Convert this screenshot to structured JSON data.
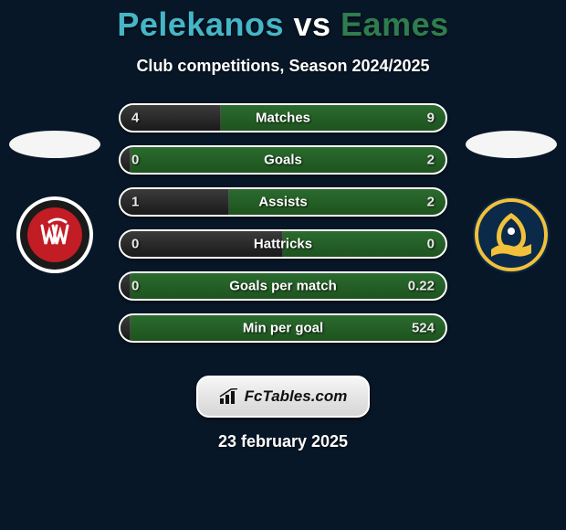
{
  "title": {
    "player1_name": "Pelekanos",
    "vs_text": "vs",
    "player2_name": "Eames",
    "player1_color": "#46b6c7",
    "vs_color": "#ffffff",
    "player2_color": "#2f7d4f"
  },
  "subtitle": "Club competitions, Season 2024/2025",
  "colors": {
    "background": "#081727",
    "bar_left_bg_top": "#3b3b3b",
    "bar_left_bg_bottom": "#1a1a1a",
    "bar_right_bg_top": "#2a6b2e",
    "bar_right_bg_bottom": "#1e531f",
    "bar_border": "#ffffff"
  },
  "club_left": {
    "name": "Western Sydney Wanderers",
    "outer_bg": "#ffffff",
    "ring_color": "#1a1a1a",
    "inner_bg": "#c21c24",
    "mono_stroke": "#ffffff"
  },
  "club_right": {
    "name": "Central Coast Mariners",
    "outer_bg": "#0b2a4a",
    "ring_color": "#f2c13a",
    "inner_bg": "#0b2a4a"
  },
  "bars": [
    {
      "label": "Matches",
      "left_value": "4",
      "right_value": "9",
      "left_pct": 30.77
    },
    {
      "label": "Goals",
      "left_value": "0",
      "right_value": "2",
      "left_pct": 3.0
    },
    {
      "label": "Assists",
      "left_value": "1",
      "right_value": "2",
      "left_pct": 33.33
    },
    {
      "label": "Hattricks",
      "left_value": "0",
      "right_value": "0",
      "left_pct": 50.0
    },
    {
      "label": "Goals per match",
      "left_value": "0",
      "right_value": "0.22",
      "left_pct": 3.0
    },
    {
      "label": "Min per goal",
      "left_value": "",
      "right_value": "524",
      "left_pct": 3.0
    }
  ],
  "site_badge": {
    "text": "FcTables.com"
  },
  "date_text": "23 february 2025"
}
